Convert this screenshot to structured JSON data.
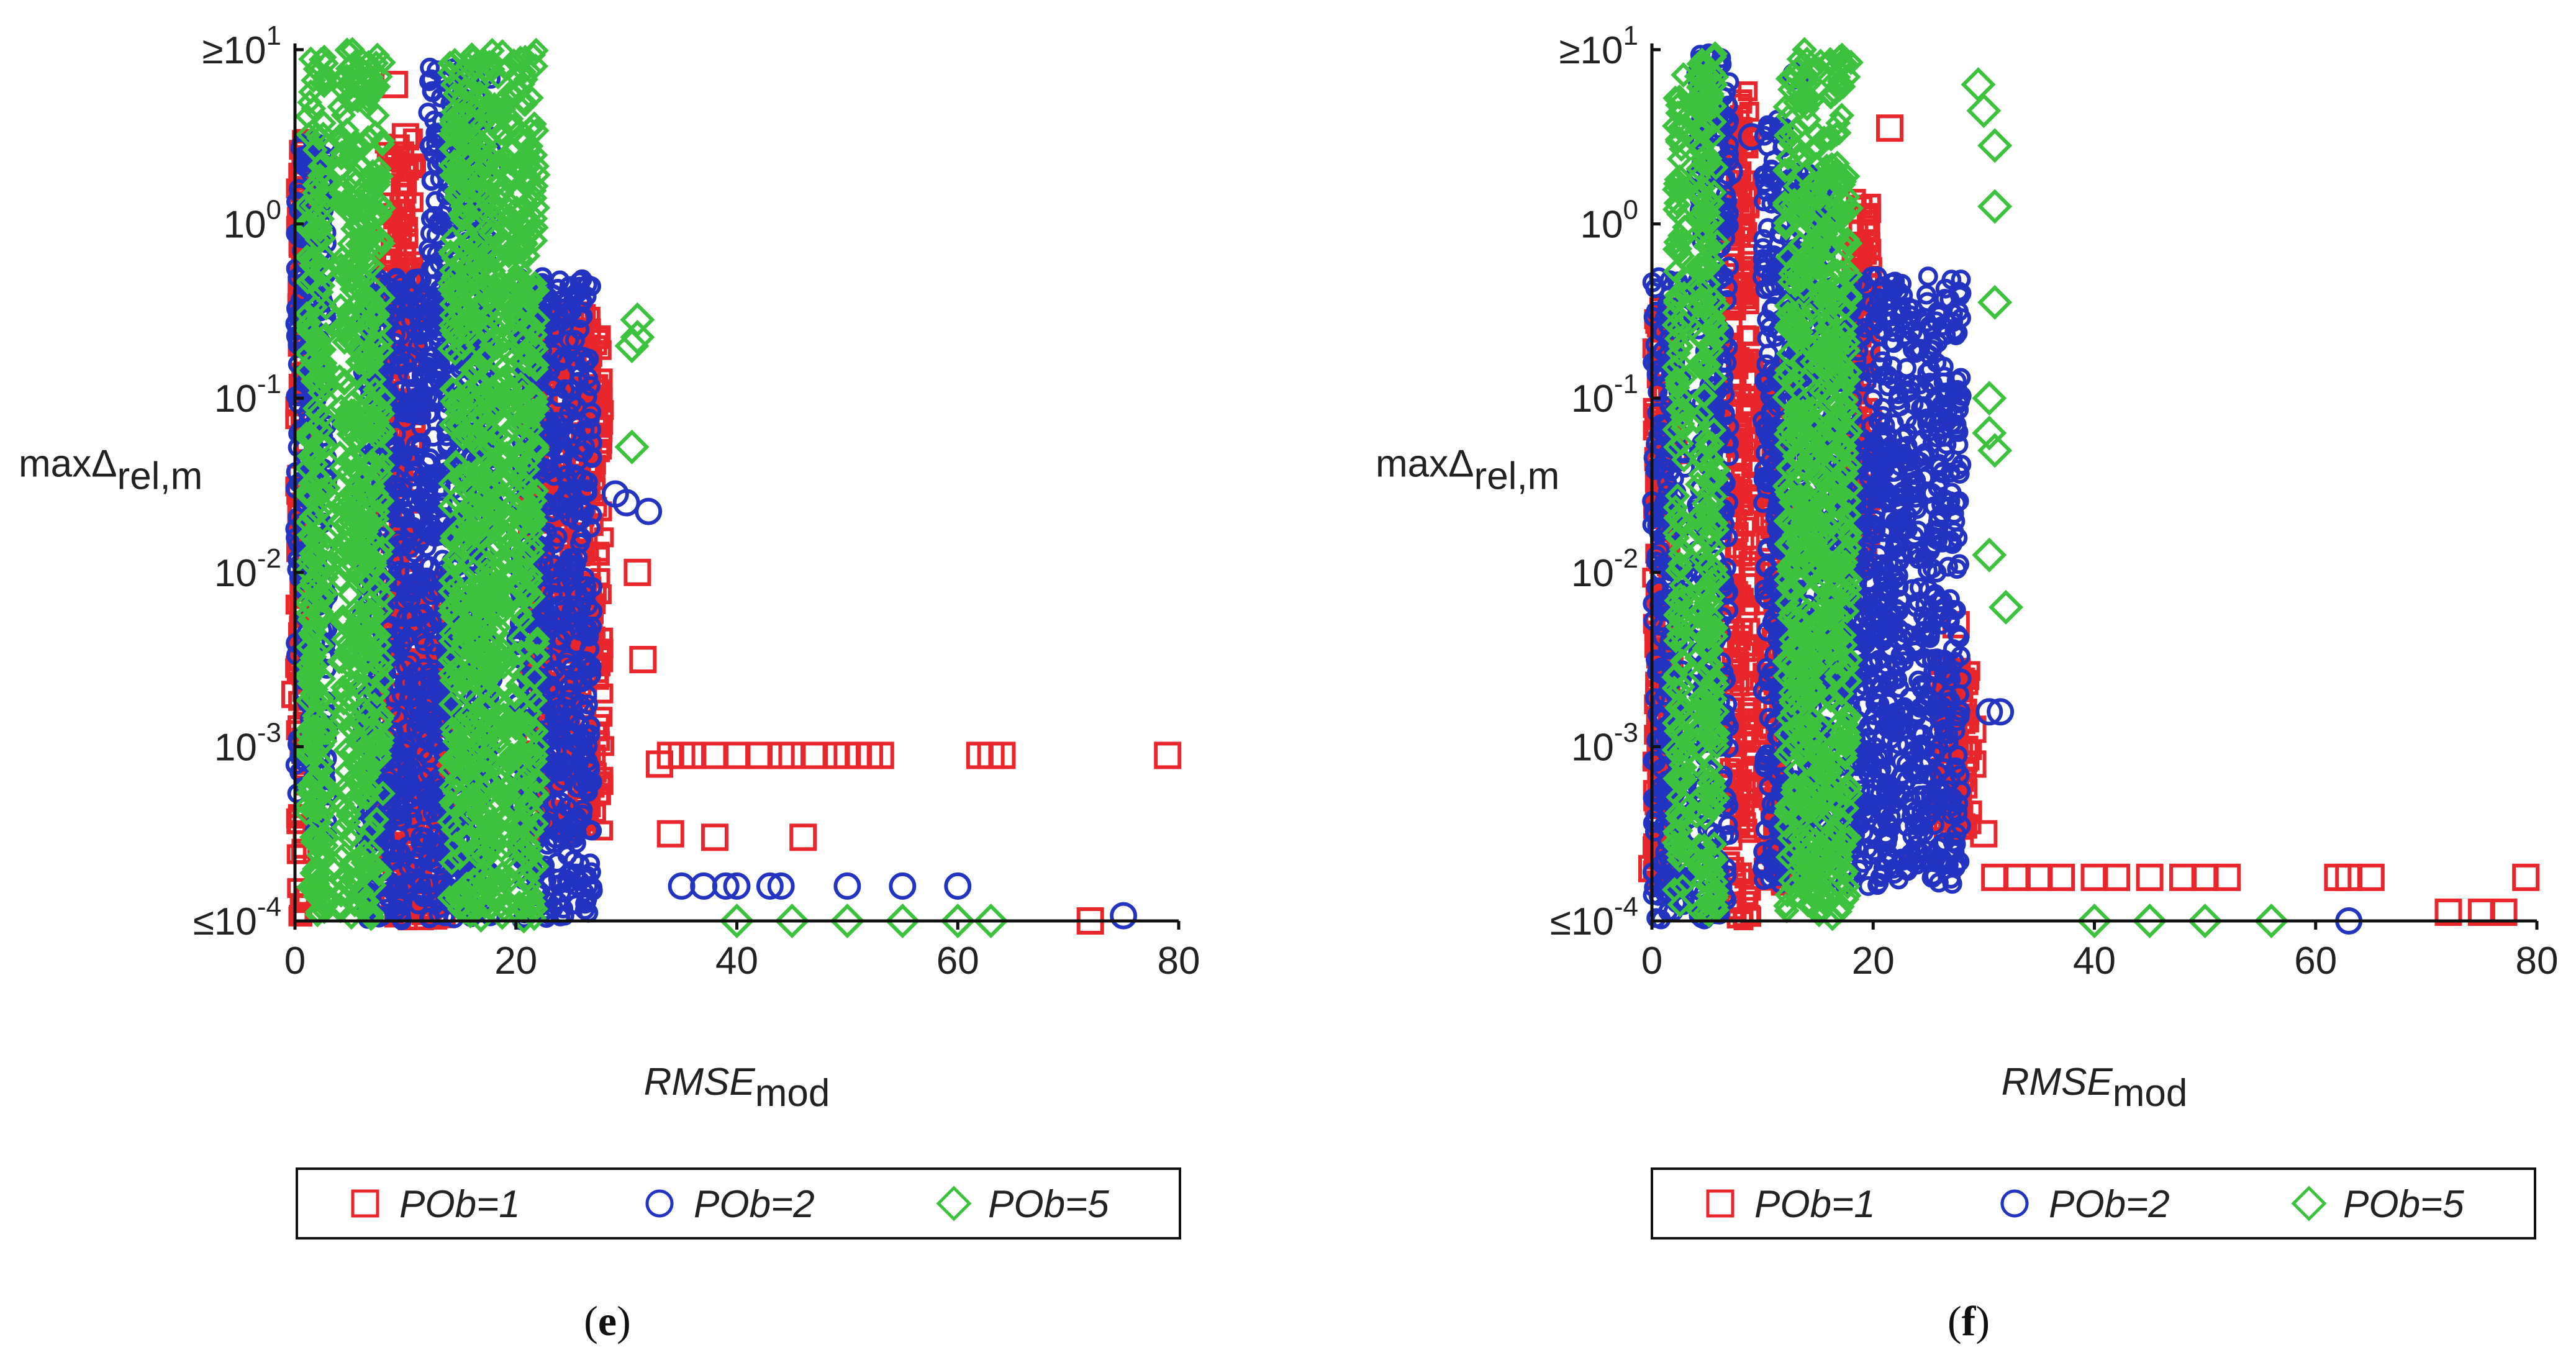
{
  "chart_data": [
    {
      "type": "scatter",
      "panel_label": "(e)",
      "label_parts": {
        "open": "(",
        "letter": "e",
        "close": ")"
      },
      "xlabel": {
        "main": "RMSE",
        "sub": "mod"
      },
      "ylabel": {
        "main": "maxΔ",
        "sub": "rel,m"
      },
      "xlim": [
        0,
        80
      ],
      "x_ticks": [
        "0",
        "20",
        "40",
        "60",
        "80"
      ],
      "y_scale": "log",
      "ylim_log10": [
        -4,
        1
      ],
      "y_ticks": [
        {
          "exp": 1,
          "base": "≥10",
          "sup": "1"
        },
        {
          "exp": 0,
          "base": "10",
          "sup": "0"
        },
        {
          "exp": -1,
          "base": "10",
          "sup": "-1"
        },
        {
          "exp": -2,
          "base": "10",
          "sup": "-2"
        },
        {
          "exp": -3,
          "base": "10",
          "sup": "-3"
        },
        {
          "exp": -4,
          "base": "≤10",
          "sup": "-4"
        }
      ],
      "series": [
        {
          "name": "POb=1",
          "marker": "square",
          "color": "#e8262b",
          "bands": [
            [
              0,
              1,
              -4,
              0.5
            ],
            [
              8,
              11,
              -4,
              0.5
            ],
            [
              11,
              14,
              -4,
              -2
            ],
            [
              21,
              28,
              -3.5,
              -0.5
            ]
          ],
          "points": [
            [
              31,
              -2
            ],
            [
              31.5,
              -2.5
            ],
            [
              33,
              -3.1
            ],
            [
              34,
              -3.05
            ],
            [
              35,
              -3.05
            ],
            [
              36,
              -3.05
            ],
            [
              38,
              -3.05
            ],
            [
              40,
              -3.05
            ],
            [
              42,
              -3.05
            ],
            [
              44,
              -3.05
            ],
            [
              45,
              -3.05
            ],
            [
              47,
              -3.05
            ],
            [
              49,
              -3.05
            ],
            [
              50,
              -3.05
            ],
            [
              51,
              -3.05
            ],
            [
              52,
              -3.05
            ],
            [
              53,
              -3.05
            ],
            [
              62,
              -3.05
            ],
            [
              63,
              -3.05
            ],
            [
              64,
              -3.05
            ],
            [
              79,
              -3.05
            ],
            [
              34,
              -3.5
            ],
            [
              38,
              -3.52
            ],
            [
              46,
              -3.52
            ],
            [
              72,
              -4
            ],
            [
              0,
              -2.7
            ],
            [
              9,
              0.8
            ],
            [
              10,
              0.5
            ]
          ]
        },
        {
          "name": "POb=2",
          "marker": "circle",
          "color": "#2334c3",
          "bands": [
            [
              0,
              3,
              -3.5,
              0.5
            ],
            [
              6,
              12,
              -4,
              -0.3
            ],
            [
              12,
              18,
              -4,
              0.9
            ],
            [
              20,
              27,
              -4,
              -0.3
            ]
          ],
          "points": [
            [
              29,
              -1.55
            ],
            [
              30,
              -1.6
            ],
            [
              32,
              -1.65
            ],
            [
              35,
              -3.8
            ],
            [
              37,
              -3.8
            ],
            [
              39,
              -3.8
            ],
            [
              40,
              -3.8
            ],
            [
              43,
              -3.8
            ],
            [
              44,
              -3.8
            ],
            [
              50,
              -3.8
            ],
            [
              55,
              -3.8
            ],
            [
              60,
              -3.8
            ],
            [
              75,
              -3.97
            ]
          ]
        },
        {
          "name": "POb=5",
          "marker": "diamond",
          "color": "#3cc23c",
          "bands": [
            [
              1,
              3,
              -4,
              1
            ],
            [
              4,
              8,
              -4,
              1
            ],
            [
              14,
              22,
              -4,
              1
            ]
          ],
          "points": [
            [
              31,
              -0.55
            ],
            [
              31,
              -0.65
            ],
            [
              30.5,
              -0.7
            ],
            [
              30.5,
              -1.28
            ],
            [
              40,
              -4
            ],
            [
              45,
              -4
            ],
            [
              50,
              -4
            ],
            [
              55,
              -4
            ],
            [
              60,
              -4
            ],
            [
              63,
              -4
            ]
          ]
        }
      ]
    },
    {
      "type": "scatter",
      "panel_label": "(f)",
      "label_parts": {
        "open": "(",
        "letter": "f",
        "close": ")"
      },
      "xlabel": {
        "main": "RMSE",
        "sub": "mod"
      },
      "ylabel": {
        "main": "maxΔ",
        "sub": "rel,m"
      },
      "xlim": [
        0,
        80
      ],
      "x_ticks": [
        "0",
        "20",
        "40",
        "60",
        "80"
      ],
      "y_scale": "log",
      "ylim_log10": [
        -4,
        1
      ],
      "y_ticks": [
        {
          "exp": 1,
          "base": "≥10",
          "sup": "1"
        },
        {
          "exp": 0,
          "base": "10",
          "sup": "0"
        },
        {
          "exp": -1,
          "base": "10",
          "sup": "-1"
        },
        {
          "exp": -2,
          "base": "10",
          "sup": "-2"
        },
        {
          "exp": -3,
          "base": "10",
          "sup": "-3"
        },
        {
          "exp": -4,
          "base": "≤10",
          "sup": "-4"
        }
      ],
      "series": [
        {
          "name": "POb=1",
          "marker": "square",
          "color": "#e8262b",
          "bands": [
            [
              0,
              2,
              -3.8,
              -0.5
            ],
            [
              7,
              9,
              -4,
              0.8
            ],
            [
              10,
              12,
              -3.8,
              -0.8
            ],
            [
              18,
              20,
              -2,
              0.2
            ],
            [
              26,
              29,
              -3.5,
              -2.5
            ]
          ],
          "points": [
            [
              1,
              -0.5
            ],
            [
              1,
              -0.7
            ],
            [
              2,
              -1.3
            ],
            [
              8,
              -1.05
            ],
            [
              21.5,
              0.55
            ],
            [
              27.5,
              -2.3
            ],
            [
              29,
              -2.9
            ],
            [
              29,
              -3.1
            ],
            [
              30,
              -3.5
            ],
            [
              31,
              -3.75
            ],
            [
              33,
              -3.75
            ],
            [
              35,
              -3.75
            ],
            [
              37,
              -3.75
            ],
            [
              40,
              -3.75
            ],
            [
              42,
              -3.75
            ],
            [
              45,
              -3.75
            ],
            [
              48,
              -3.75
            ],
            [
              50,
              -3.75
            ],
            [
              52,
              -3.75
            ],
            [
              62,
              -3.75
            ],
            [
              63,
              -3.75
            ],
            [
              65,
              -3.75
            ],
            [
              79,
              -3.75
            ],
            [
              72,
              -3.95
            ],
            [
              75,
              -3.95
            ],
            [
              77,
              -3.95
            ],
            [
              0,
              -3.7
            ]
          ]
        },
        {
          "name": "POb=2",
          "marker": "circle",
          "color": "#2334c3",
          "bands": [
            [
              0,
              3,
              -4,
              -0.3
            ],
            [
              4,
              7,
              -4,
              1
            ],
            [
              10,
              12,
              -3.8,
              0.6
            ],
            [
              12,
              16,
              -3.8,
              0.3
            ],
            [
              16,
              28,
              -3.8,
              -0.3
            ]
          ],
          "points": [
            [
              5,
              0.8
            ],
            [
              7,
              0.3
            ],
            [
              9,
              0.5
            ],
            [
              13,
              0.85
            ],
            [
              30.5,
              -2.8
            ],
            [
              31.5,
              -2.8
            ],
            [
              63,
              -4
            ]
          ]
        },
        {
          "name": "POb=5",
          "marker": "diamond",
          "color": "#3cc23c",
          "bands": [
            [
              2,
              3,
              -4,
              0.9
            ],
            [
              4,
              6,
              -4,
              1
            ],
            [
              12,
              18,
              -4,
              1
            ]
          ],
          "points": [
            [
              29.5,
              0.8
            ],
            [
              30,
              0.65
            ],
            [
              31,
              0.45
            ],
            [
              31,
              0.1
            ],
            [
              31,
              -0.45
            ],
            [
              30.5,
              -1
            ],
            [
              30.5,
              -1.2
            ],
            [
              31,
              -1.3
            ],
            [
              30.5,
              -1.9
            ],
            [
              32,
              -2.2
            ],
            [
              40,
              -4
            ],
            [
              45,
              -4
            ],
            [
              50,
              -4
            ],
            [
              56,
              -4
            ]
          ]
        }
      ]
    }
  ]
}
